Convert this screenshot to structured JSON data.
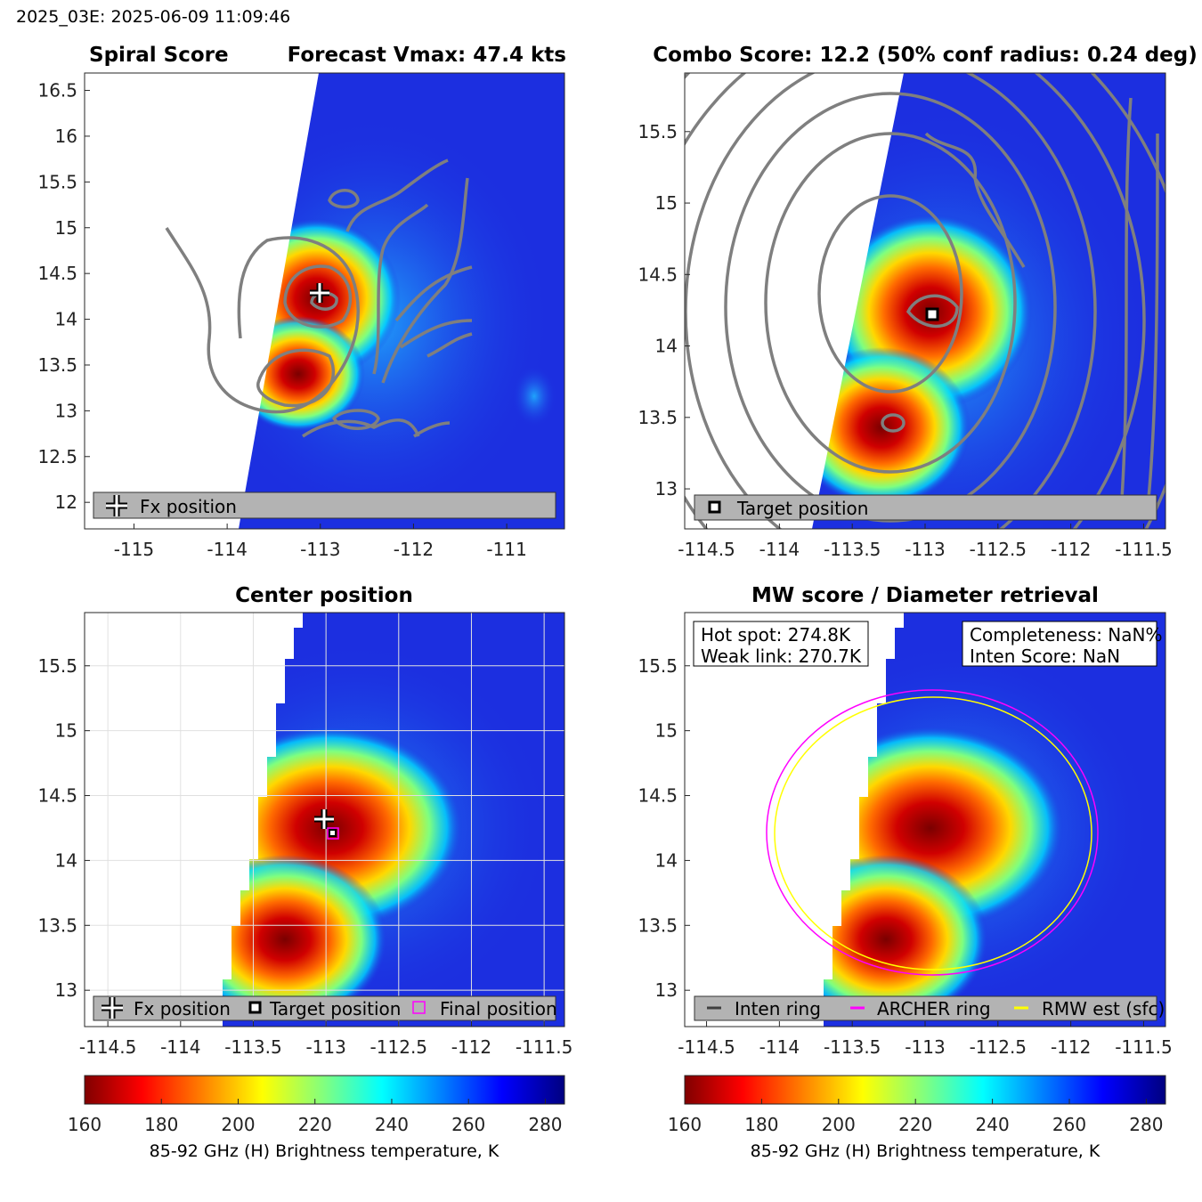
{
  "header": {
    "label": "2025_03E: 2025-06-09 11:09:46"
  },
  "colors": {
    "background": "#1c2fe0",
    "contour": "#7f7f7f",
    "archer": "#ff00ff",
    "rmw": "#ffff00",
    "inten": "#404040"
  },
  "chart_data": [
    {
      "type": "heatmap",
      "title_left": "Spiral Score",
      "title_right": "Forecast Vmax: 47.4 kts",
      "xlim": [
        -115.53,
        -110.38
      ],
      "ylim": [
        11.71,
        16.69
      ],
      "xticks": [
        -115,
        -114,
        -113,
        -112,
        -111
      ],
      "yticks": [
        12,
        12.5,
        13,
        13.5,
        14,
        14.5,
        15,
        15.5,
        16,
        16.5
      ],
      "legend": [
        {
          "label": "Fx position",
          "marker": "plus"
        }
      ],
      "markers": [
        {
          "name": "Fx position",
          "lon": -113.0,
          "lat": 14.3
        }
      ]
    },
    {
      "type": "heatmap",
      "title": "Combo Score: 12.2  (50% conf radius: 0.24 deg)",
      "xlim": [
        -114.65,
        -111.35
      ],
      "ylim": [
        12.72,
        15.91
      ],
      "xticks": [
        -114.5,
        -114,
        -113.5,
        -113,
        -112.5,
        -112,
        -111.5
      ],
      "yticks": [
        13,
        13.5,
        14,
        14.5,
        15,
        15.5
      ],
      "legend": [
        {
          "label": "Target position",
          "marker": "square"
        }
      ],
      "markers": [
        {
          "name": "Target position",
          "lon": -112.96,
          "lat": 14.21
        }
      ]
    },
    {
      "type": "heatmap",
      "title": "Center position",
      "xlim": [
        -114.66,
        -111.36
      ],
      "ylim": [
        12.72,
        15.91
      ],
      "xticks": [
        -114.5,
        -114,
        -113.5,
        -113,
        -112.5,
        -112,
        -111.5
      ],
      "yticks": [
        13,
        13.5,
        14,
        14.5,
        15,
        15.5
      ],
      "legend": [
        {
          "label": "Fx position",
          "marker": "plus"
        },
        {
          "label": "Target position",
          "marker": "square"
        },
        {
          "label": "Final position",
          "marker": "magenta-square"
        }
      ],
      "colorbar": {
        "ticks": [
          160,
          180,
          200,
          220,
          240,
          260,
          280
        ],
        "range": [
          160,
          285
        ],
        "label": "85-92 GHz (H) Brightness temperature, K"
      }
    },
    {
      "type": "heatmap",
      "title": "MW score / Diameter retrieval",
      "xlim": [
        -114.65,
        -111.35
      ],
      "ylim": [
        12.72,
        15.91
      ],
      "xticks": [
        -114.5,
        -114,
        -113.5,
        -113,
        -112.5,
        -112,
        -111.5
      ],
      "yticks": [
        13,
        13.5,
        14,
        14.5,
        15,
        15.5
      ],
      "annotations": {
        "hot_spot": "Hot spot: 274.8K",
        "weak_link": "Weak link: 270.7K",
        "completeness": "Completeness: NaN%",
        "inten_score": "Inten Score: NaN"
      },
      "legend": [
        {
          "label": "Inten ring",
          "marker": "line"
        },
        {
          "label": "ARCHER ring",
          "marker": "line"
        },
        {
          "label": "RMW est (sfc)",
          "marker": "line"
        }
      ],
      "colorbar": {
        "ticks": [
          160,
          180,
          200,
          220,
          240,
          260,
          280
        ],
        "range": [
          160,
          285
        ],
        "label": "85-92 GHz (H) Brightness temperature, K"
      }
    }
  ]
}
